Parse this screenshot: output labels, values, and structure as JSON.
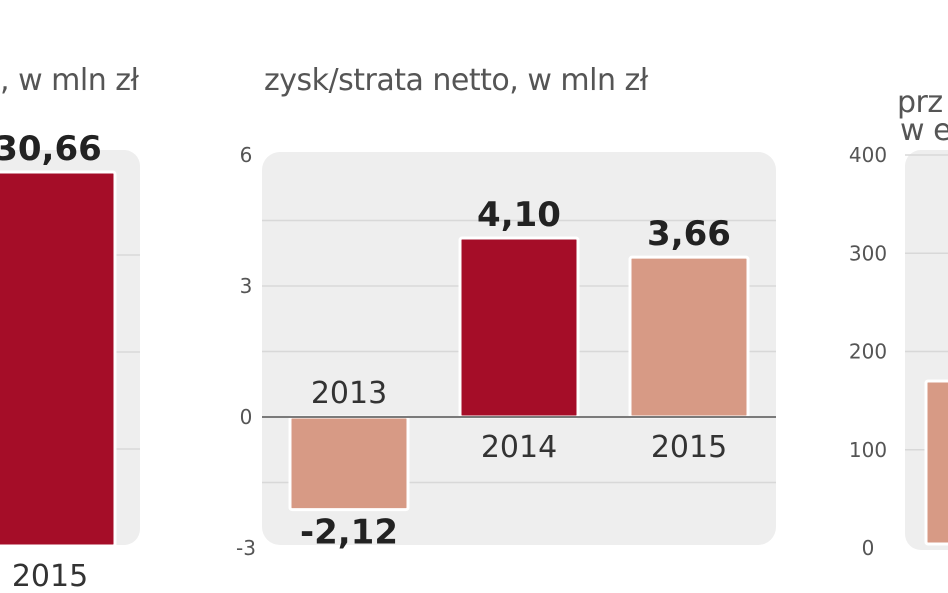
{
  "colors": {
    "dark": "#a50d28",
    "light": "#d79a85",
    "panel": "#eeeeee",
    "grid": "#d8d8d8",
    "zero": "#7a7a7a"
  },
  "chart_data": [
    {
      "type": "bar",
      "title_fragment": ", w mln zł",
      "categories": [
        "2015"
      ],
      "values": [
        30.66
      ],
      "value_labels": [
        "30,66"
      ],
      "bar_colors": [
        "dark"
      ],
      "grid": true,
      "partial": "cropped-left"
    },
    {
      "type": "bar",
      "title": "zysk/strata netto, w mln zł",
      "categories": [
        "2013",
        "2014",
        "2015"
      ],
      "values": [
        -2.12,
        4.1,
        3.66
      ],
      "value_labels": [
        "-2,12",
        "4,10",
        "3,66"
      ],
      "bar_colors": [
        "light",
        "dark",
        "light"
      ],
      "yticks": [
        "6",
        "3",
        "0",
        "-3"
      ],
      "ytick_values": [
        6,
        3,
        0,
        -3
      ],
      "ylim": [
        -3,
        6
      ],
      "grid": true
    },
    {
      "type": "bar",
      "title_fragment_1": "prz",
      "title_fragment_2": "w e",
      "yticks": [
        "400",
        "300",
        "200",
        "100",
        "0"
      ],
      "ytick_values": [
        400,
        300,
        200,
        100,
        0
      ],
      "ylim": [
        0,
        400
      ],
      "values": [
        170
      ],
      "bar_colors": [
        "light"
      ],
      "grid": true,
      "partial": "cropped-right"
    }
  ]
}
